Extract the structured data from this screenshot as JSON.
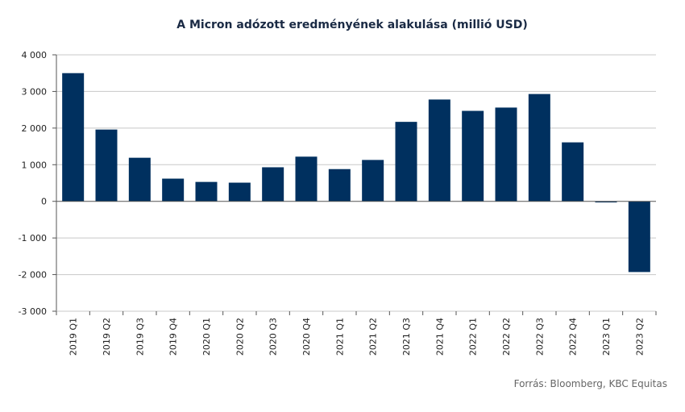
{
  "chart_data": {
    "type": "bar",
    "title": "A Micron adózott eredményének  alakulása (millió USD)",
    "categories": [
      "2019 Q1",
      "2019 Q2",
      "2019 Q3",
      "2019 Q4",
      "2020 Q1",
      "2020 Q2",
      "2020 Q3",
      "2020 Q4",
      "2021 Q1",
      "2021 Q2",
      "2021 Q3",
      "2021 Q4",
      "2022 Q1",
      "2022 Q2",
      "2022 Q3",
      "2022 Q4",
      "2023 Q1",
      "2023 Q2"
    ],
    "values": [
      3500,
      1960,
      1190,
      620,
      530,
      510,
      930,
      1220,
      880,
      1130,
      2170,
      2780,
      2470,
      2560,
      2930,
      1610,
      -30,
      -1930
    ],
    "ylim": [
      -3000,
      4000
    ],
    "yticks": [
      4000,
      3000,
      2000,
      1000,
      0,
      -1000,
      -2000,
      -3000
    ],
    "ytick_labels": [
      "4 000",
      "3 000",
      "2 000",
      "1 000",
      "0",
      "-1 000",
      "-2 000",
      "-3 000"
    ],
    "bar_color": "#00305f",
    "grid": true,
    "xlabel": "",
    "ylabel": ""
  },
  "source": "Forrás: Bloomberg,  KBC Equitas"
}
